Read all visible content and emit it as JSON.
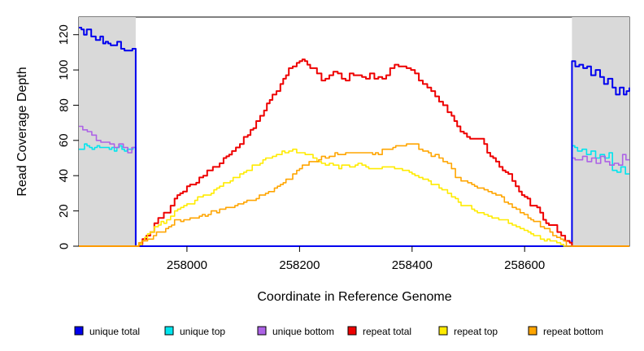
{
  "chart_data": {
    "type": "line",
    "title": "",
    "xlabel": "Coordinate in Reference Genome",
    "ylabel": "Read Coverage Depth",
    "x_ticks": [
      258000,
      258200,
      258400,
      258600
    ],
    "y_ticks": [
      0,
      20,
      40,
      60,
      80,
      100,
      120
    ],
    "xlim": [
      257808,
      258786
    ],
    "ylim": [
      0,
      130
    ],
    "grid": false,
    "legend_position": "bottom",
    "background_color": "#FFFFFF",
    "shaded_region_color": "#D9D9D9",
    "shaded_regions": [
      [
        257808,
        257909
      ],
      [
        258684,
        258786
      ]
    ],
    "series": [
      {
        "id": "unique-total",
        "name": "unique total",
        "color": "#0000EE",
        "lw": 2,
        "points": [
          [
            257808,
            124
          ],
          [
            257817,
            121
          ],
          [
            257822,
            122
          ],
          [
            257830,
            119
          ],
          [
            257838,
            117
          ],
          [
            257846,
            119
          ],
          [
            257851,
            115
          ],
          [
            257860,
            116
          ],
          [
            257869,
            113
          ],
          [
            257876,
            115
          ],
          [
            257883,
            111
          ],
          [
            257889,
            112
          ],
          [
            257896,
            110
          ],
          [
            257903,
            112
          ],
          [
            257909,
            110
          ],
          [
            257909,
            0
          ],
          [
            258684,
            0
          ],
          [
            258684,
            105
          ],
          [
            258690,
            102
          ],
          [
            258697,
            103
          ],
          [
            258704,
            100
          ],
          [
            258711,
            102
          ],
          [
            258718,
            98
          ],
          [
            258726,
            100
          ],
          [
            258734,
            96
          ],
          [
            258741,
            92
          ],
          [
            258748,
            94
          ],
          [
            258756,
            89
          ],
          [
            258762,
            87
          ],
          [
            258769,
            90
          ],
          [
            258776,
            87
          ],
          [
            258786,
            89
          ]
        ]
      },
      {
        "id": "unique-top",
        "name": "unique top",
        "color": "#00E5EE",
        "lw": 1.6,
        "points": [
          [
            257808,
            55
          ],
          [
            257818,
            57
          ],
          [
            257827,
            55
          ],
          [
            257836,
            56
          ],
          [
            257845,
            57
          ],
          [
            257853,
            55
          ],
          [
            257862,
            56
          ],
          [
            257871,
            54
          ],
          [
            257880,
            56
          ],
          [
            257889,
            54
          ],
          [
            257899,
            56
          ],
          [
            257909,
            55
          ],
          [
            257909,
            0
          ],
          [
            258684,
            0
          ],
          [
            258684,
            57
          ],
          [
            258694,
            54
          ],
          [
            258702,
            55
          ],
          [
            258710,
            52
          ],
          [
            258718,
            54
          ],
          [
            258726,
            51
          ],
          [
            258734,
            53
          ],
          [
            258742,
            50
          ],
          [
            258750,
            52
          ],
          [
            258756,
            44
          ],
          [
            258764,
            42
          ],
          [
            258771,
            44
          ],
          [
            258779,
            41
          ],
          [
            258786,
            42
          ]
        ]
      },
      {
        "id": "unique-bottom",
        "name": "unique bottom",
        "color": "#AD63E6",
        "lw": 1.6,
        "points": [
          [
            257808,
            68
          ],
          [
            257815,
            65
          ],
          [
            257823,
            66
          ],
          [
            257831,
            63
          ],
          [
            257839,
            61
          ],
          [
            257847,
            59
          ],
          [
            257855,
            58
          ],
          [
            257863,
            57
          ],
          [
            257871,
            55
          ],
          [
            257879,
            57
          ],
          [
            257887,
            56
          ],
          [
            257895,
            53
          ],
          [
            257902,
            55
          ],
          [
            257909,
            53
          ],
          [
            257909,
            0
          ],
          [
            258684,
            0
          ],
          [
            258684,
            50
          ],
          [
            258695,
            49
          ],
          [
            258703,
            51
          ],
          [
            258711,
            48
          ],
          [
            258719,
            50
          ],
          [
            258727,
            48
          ],
          [
            258735,
            51
          ],
          [
            258743,
            48
          ],
          [
            258751,
            47
          ],
          [
            258759,
            48
          ],
          [
            258767,
            47
          ],
          [
            258774,
            52
          ],
          [
            258780,
            48
          ],
          [
            258786,
            49
          ]
        ]
      },
      {
        "id": "repeat-total",
        "name": "repeat total",
        "color": "#EE0000",
        "lw": 2,
        "points": [
          [
            257808,
            0
          ],
          [
            257909,
            0
          ],
          [
            257921,
            3
          ],
          [
            257935,
            8
          ],
          [
            257949,
            15
          ],
          [
            257964,
            20
          ],
          [
            257978,
            26
          ],
          [
            257993,
            31
          ],
          [
            258000,
            33
          ],
          [
            258022,
            38
          ],
          [
            258036,
            42
          ],
          [
            258051,
            45
          ],
          [
            258065,
            50
          ],
          [
            258080,
            53
          ],
          [
            258094,
            58
          ],
          [
            258108,
            64
          ],
          [
            258123,
            70
          ],
          [
            258137,
            78
          ],
          [
            258152,
            85
          ],
          [
            258166,
            92
          ],
          [
            258181,
            100
          ],
          [
            258195,
            104
          ],
          [
            258200,
            106
          ],
          [
            258205,
            107
          ],
          [
            258214,
            103
          ],
          [
            258224,
            101
          ],
          [
            258231,
            97
          ],
          [
            258239,
            95
          ],
          [
            258246,
            95
          ],
          [
            258253,
            97
          ],
          [
            258260,
            99
          ],
          [
            258268,
            98
          ],
          [
            258275,
            95
          ],
          [
            258282,
            94
          ],
          [
            258289,
            97
          ],
          [
            258296,
            97
          ],
          [
            258304,
            96
          ],
          [
            258311,
            97
          ],
          [
            258318,
            96
          ],
          [
            258325,
            98
          ],
          [
            258333,
            95
          ],
          [
            258340,
            96
          ],
          [
            258347,
            96
          ],
          [
            258354,
            98
          ],
          [
            258361,
            100
          ],
          [
            258369,
            102
          ],
          [
            258376,
            101
          ],
          [
            258383,
            102
          ],
          [
            258390,
            101
          ],
          [
            258398,
            100
          ],
          [
            258405,
            97
          ],
          [
            258412,
            95
          ],
          [
            258419,
            92
          ],
          [
            258427,
            89
          ],
          [
            258434,
            87
          ],
          [
            258441,
            84
          ],
          [
            258448,
            81
          ],
          [
            258455,
            79
          ],
          [
            258463,
            77
          ],
          [
            258470,
            73
          ],
          [
            258480,
            68
          ],
          [
            258492,
            64
          ],
          [
            258503,
            60
          ],
          [
            258513,
            61
          ],
          [
            258521,
            61
          ],
          [
            258528,
            57
          ],
          [
            258539,
            51
          ],
          [
            258549,
            48
          ],
          [
            258561,
            44
          ],
          [
            258571,
            40
          ],
          [
            258578,
            37
          ],
          [
            258590,
            32
          ],
          [
            258600,
            28
          ],
          [
            258610,
            24
          ],
          [
            258622,
            21
          ],
          [
            258633,
            16
          ],
          [
            258643,
            12
          ],
          [
            258651,
            11
          ],
          [
            258658,
            8
          ],
          [
            258665,
            5
          ],
          [
            258672,
            3
          ],
          [
            258680,
            1
          ],
          [
            258684,
            0
          ],
          [
            258786,
            0
          ]
        ]
      },
      {
        "id": "repeat-top",
        "name": "repeat top",
        "color": "#FFEB00",
        "lw": 1.6,
        "points": [
          [
            257808,
            0
          ],
          [
            257909,
            0
          ],
          [
            257920,
            3
          ],
          [
            257935,
            8
          ],
          [
            257949,
            12
          ],
          [
            257964,
            15
          ],
          [
            257978,
            20
          ],
          [
            258000,
            24
          ],
          [
            258014,
            26
          ],
          [
            258029,
            28
          ],
          [
            258043,
            31
          ],
          [
            258058,
            34
          ],
          [
            258072,
            36
          ],
          [
            258087,
            39
          ],
          [
            258101,
            42
          ],
          [
            258116,
            45
          ],
          [
            258130,
            48
          ],
          [
            258145,
            50
          ],
          [
            258159,
            52
          ],
          [
            258174,
            53
          ],
          [
            258188,
            54
          ],
          [
            258202,
            53
          ],
          [
            258210,
            52
          ],
          [
            258217,
            52
          ],
          [
            258224,
            50
          ],
          [
            258231,
            48
          ],
          [
            258239,
            47
          ],
          [
            258246,
            47
          ],
          [
            258260,
            46
          ],
          [
            258275,
            45
          ],
          [
            258289,
            45
          ],
          [
            258304,
            46
          ],
          [
            258318,
            45
          ],
          [
            258333,
            44
          ],
          [
            258340,
            44
          ],
          [
            258347,
            45
          ],
          [
            258354,
            46
          ],
          [
            258361,
            46
          ],
          [
            258369,
            45
          ],
          [
            258376,
            44
          ],
          [
            258383,
            43
          ],
          [
            258390,
            42
          ],
          [
            258405,
            40
          ],
          [
            258419,
            38
          ],
          [
            258434,
            36
          ],
          [
            258448,
            33
          ],
          [
            258463,
            30
          ],
          [
            258477,
            26
          ],
          [
            258492,
            23
          ],
          [
            258506,
            21
          ],
          [
            258521,
            19
          ],
          [
            258535,
            17
          ],
          [
            258549,
            15
          ],
          [
            258564,
            14
          ],
          [
            258578,
            12
          ],
          [
            258592,
            10
          ],
          [
            258606,
            8
          ],
          [
            258621,
            6
          ],
          [
            258635,
            4
          ],
          [
            258650,
            3
          ],
          [
            258664,
            1
          ],
          [
            258675,
            0
          ],
          [
            258684,
            0
          ],
          [
            258786,
            0
          ]
        ]
      },
      {
        "id": "repeat-bottom",
        "name": "repeat bottom",
        "color": "#FFA500",
        "lw": 1.6,
        "points": [
          [
            257808,
            0
          ],
          [
            257909,
            0
          ],
          [
            257920,
            2
          ],
          [
            257935,
            5
          ],
          [
            257957,
            9
          ],
          [
            257978,
            14
          ],
          [
            258000,
            15
          ],
          [
            258022,
            17
          ],
          [
            258043,
            19
          ],
          [
            258058,
            20
          ],
          [
            258080,
            22
          ],
          [
            258101,
            25
          ],
          [
            258123,
            28
          ],
          [
            258145,
            31
          ],
          [
            258166,
            35
          ],
          [
            258181,
            39
          ],
          [
            258195,
            43
          ],
          [
            258210,
            46
          ],
          [
            258224,
            48
          ],
          [
            258239,
            50
          ],
          [
            258253,
            51
          ],
          [
            258268,
            52
          ],
          [
            258282,
            53
          ],
          [
            258296,
            54
          ],
          [
            258311,
            53
          ],
          [
            258325,
            52
          ],
          [
            258340,
            53
          ],
          [
            258347,
            54
          ],
          [
            258361,
            56
          ],
          [
            258376,
            57
          ],
          [
            258390,
            58
          ],
          [
            258398,
            58
          ],
          [
            258405,
            57
          ],
          [
            258412,
            55
          ],
          [
            258419,
            54
          ],
          [
            258434,
            52
          ],
          [
            258448,
            50
          ],
          [
            258455,
            48
          ],
          [
            258463,
            46
          ],
          [
            258470,
            44
          ],
          [
            258477,
            39
          ],
          [
            258492,
            37
          ],
          [
            258506,
            35
          ],
          [
            258521,
            33
          ],
          [
            258535,
            31
          ],
          [
            258549,
            30
          ],
          [
            258564,
            26
          ],
          [
            258578,
            22
          ],
          [
            258592,
            19
          ],
          [
            258606,
            16
          ],
          [
            258621,
            13
          ],
          [
            258635,
            10
          ],
          [
            258650,
            7
          ],
          [
            258664,
            4
          ],
          [
            258674,
            1
          ],
          [
            258680,
            0
          ],
          [
            258786,
            0
          ]
        ]
      }
    ]
  }
}
